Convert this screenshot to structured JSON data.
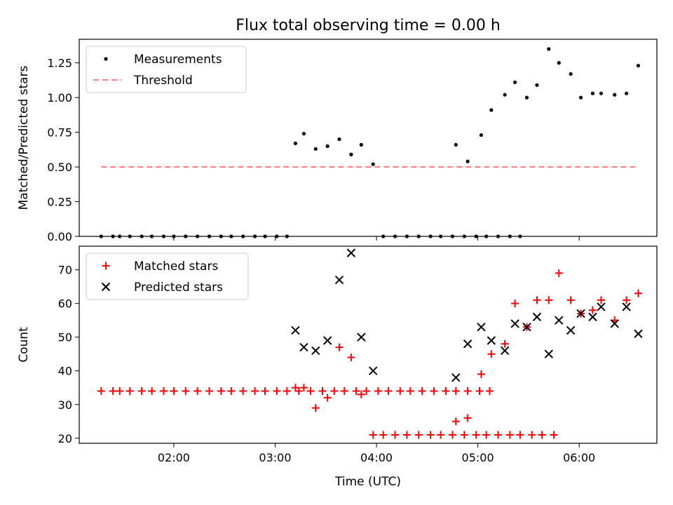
{
  "title": "Flux total observing time = 0.00 h",
  "xlabel": "Time (UTC)",
  "xticks": [
    "02:00",
    "03:00",
    "04:00",
    "05:00",
    "06:00"
  ],
  "colors": {
    "measure": "#000000",
    "threshold": "#ff7f7f",
    "matched": "#ff0000",
    "predicted": "#000000"
  },
  "chart_data": [
    {
      "type": "scatter",
      "panel": "top",
      "ylabel": "Matched/Predicted stars",
      "ylim": [
        0.0,
        1.42
      ],
      "yticks": [
        "0.00",
        "0.25",
        "0.50",
        "0.75",
        "1.00",
        "1.25"
      ],
      "legend_position": "top-left",
      "series": [
        {
          "name": "Measurements",
          "marker": "dot",
          "points": [
            [
              "01:17",
              0
            ],
            [
              "01:24",
              0
            ],
            [
              "01:28",
              0
            ],
            [
              "01:34",
              0
            ],
            [
              "01:41",
              0
            ],
            [
              "01:47",
              0
            ],
            [
              "01:54",
              0
            ],
            [
              "02:00",
              0
            ],
            [
              "02:07",
              0
            ],
            [
              "02:14",
              0
            ],
            [
              "02:21",
              0
            ],
            [
              "02:28",
              0
            ],
            [
              "02:34",
              0
            ],
            [
              "02:41",
              0
            ],
            [
              "02:48",
              0
            ],
            [
              "02:54",
              0
            ],
            [
              "03:01",
              0
            ],
            [
              "03:07",
              0
            ],
            [
              "03:12",
              0.67
            ],
            [
              "03:17",
              0.74
            ],
            [
              "03:24",
              0.63
            ],
            [
              "03:31",
              0.65
            ],
            [
              "03:38",
              0.7
            ],
            [
              "03:45",
              0.59
            ],
            [
              "03:51",
              0.66
            ],
            [
              "03:58",
              0.52
            ],
            [
              "04:04",
              0
            ],
            [
              "04:11",
              0
            ],
            [
              "04:18",
              0
            ],
            [
              "04:25",
              0
            ],
            [
              "04:32",
              0
            ],
            [
              "04:38",
              0
            ],
            [
              "04:45",
              0
            ],
            [
              "04:52",
              0
            ],
            [
              "04:59",
              0
            ],
            [
              "05:05",
              0
            ],
            [
              "05:12",
              0
            ],
            [
              "05:19",
              0
            ],
            [
              "05:25",
              0
            ],
            [
              "04:47",
              0.66
            ],
            [
              "04:54",
              0.54
            ],
            [
              "05:02",
              0.73
            ],
            [
              "05:08",
              0.91
            ],
            [
              "05:16",
              1.02
            ],
            [
              "05:22",
              1.11
            ],
            [
              "05:29",
              1.0
            ],
            [
              "05:35",
              1.09
            ],
            [
              "05:42",
              1.35
            ],
            [
              "05:48",
              1.25
            ],
            [
              "05:55",
              1.17
            ],
            [
              "06:01",
              1.0
            ],
            [
              "06:08",
              1.03
            ],
            [
              "06:13",
              1.03
            ],
            [
              "06:21",
              1.02
            ],
            [
              "06:28",
              1.03
            ],
            [
              "06:35",
              1.23
            ]
          ]
        },
        {
          "name": "Threshold",
          "style": "dashed",
          "y": 0.5,
          "x": [
            "01:17",
            "06:35"
          ]
        }
      ]
    },
    {
      "type": "scatter",
      "panel": "bottom",
      "ylabel": "Count",
      "ylim": [
        18.5,
        77
      ],
      "yticks": [
        "20",
        "30",
        "40",
        "50",
        "60",
        "70"
      ],
      "legend_position": "top-left",
      "series": [
        {
          "name": "Matched stars",
          "marker": "plus",
          "points": [
            [
              "01:17",
              34
            ],
            [
              "01:24",
              34
            ],
            [
              "01:28",
              34
            ],
            [
              "01:34",
              34
            ],
            [
              "01:41",
              34
            ],
            [
              "01:47",
              34
            ],
            [
              "01:54",
              34
            ],
            [
              "02:00",
              34
            ],
            [
              "02:07",
              34
            ],
            [
              "02:14",
              34
            ],
            [
              "02:21",
              34
            ],
            [
              "02:28",
              34
            ],
            [
              "02:34",
              34
            ],
            [
              "02:41",
              34
            ],
            [
              "02:48",
              34
            ],
            [
              "02:54",
              34
            ],
            [
              "03:01",
              34
            ],
            [
              "03:07",
              34
            ],
            [
              "03:14",
              34
            ],
            [
              "03:21",
              34
            ],
            [
              "03:28",
              34
            ],
            [
              "03:35",
              34
            ],
            [
              "03:41",
              34
            ],
            [
              "03:48",
              34
            ],
            [
              "03:54",
              34
            ],
            [
              "04:01",
              34
            ],
            [
              "04:07",
              34
            ],
            [
              "04:14",
              34
            ],
            [
              "04:20",
              34
            ],
            [
              "04:27",
              34
            ],
            [
              "04:34",
              34
            ],
            [
              "04:41",
              34
            ],
            [
              "04:47",
              34
            ],
            [
              "04:54",
              34
            ],
            [
              "05:01",
              34
            ],
            [
              "05:07",
              34
            ],
            [
              "03:12",
              35
            ],
            [
              "03:17",
              35
            ],
            [
              "03:24",
              29
            ],
            [
              "03:31",
              32
            ],
            [
              "03:38",
              47
            ],
            [
              "03:45",
              44
            ],
            [
              "03:51",
              33
            ],
            [
              "03:58",
              21
            ],
            [
              "04:04",
              21
            ],
            [
              "04:11",
              21
            ],
            [
              "04:18",
              21
            ],
            [
              "04:25",
              21
            ],
            [
              "04:32",
              21
            ],
            [
              "04:38",
              21
            ],
            [
              "04:45",
              21
            ],
            [
              "04:52",
              21
            ],
            [
              "04:59",
              21
            ],
            [
              "05:05",
              21
            ],
            [
              "05:12",
              21
            ],
            [
              "05:19",
              21
            ],
            [
              "05:25",
              21
            ],
            [
              "05:32",
              21
            ],
            [
              "05:38",
              21
            ],
            [
              "05:45",
              21
            ],
            [
              "04:47",
              25
            ],
            [
              "04:54",
              26
            ],
            [
              "05:02",
              39
            ],
            [
              "05:08",
              45
            ],
            [
              "05:16",
              48
            ],
            [
              "05:22",
              60
            ],
            [
              "05:29",
              53
            ],
            [
              "05:35",
              61
            ],
            [
              "05:42",
              61
            ],
            [
              "05:48",
              69
            ],
            [
              "05:55",
              61
            ],
            [
              "06:01",
              57
            ],
            [
              "06:08",
              58
            ],
            [
              "06:13",
              61
            ],
            [
              "06:21",
              55
            ],
            [
              "06:28",
              61
            ],
            [
              "06:35",
              63
            ]
          ]
        },
        {
          "name": "Predicted stars",
          "marker": "x",
          "points": [
            [
              "03:12",
              52
            ],
            [
              "03:17",
              47
            ],
            [
              "03:24",
              46
            ],
            [
              "03:31",
              49
            ],
            [
              "03:38",
              67
            ],
            [
              "03:45",
              75
            ],
            [
              "03:51",
              50
            ],
            [
              "03:58",
              40
            ],
            [
              "04:47",
              38
            ],
            [
              "04:54",
              48
            ],
            [
              "05:02",
              53
            ],
            [
              "05:08",
              49
            ],
            [
              "05:16",
              46
            ],
            [
              "05:22",
              54
            ],
            [
              "05:29",
              53
            ],
            [
              "05:35",
              56
            ],
            [
              "05:42",
              45
            ],
            [
              "05:48",
              55
            ],
            [
              "05:55",
              52
            ],
            [
              "06:01",
              57
            ],
            [
              "06:08",
              56
            ],
            [
              "06:13",
              59
            ],
            [
              "06:21",
              54
            ],
            [
              "06:28",
              59
            ],
            [
              "06:35",
              51
            ]
          ]
        }
      ]
    }
  ]
}
